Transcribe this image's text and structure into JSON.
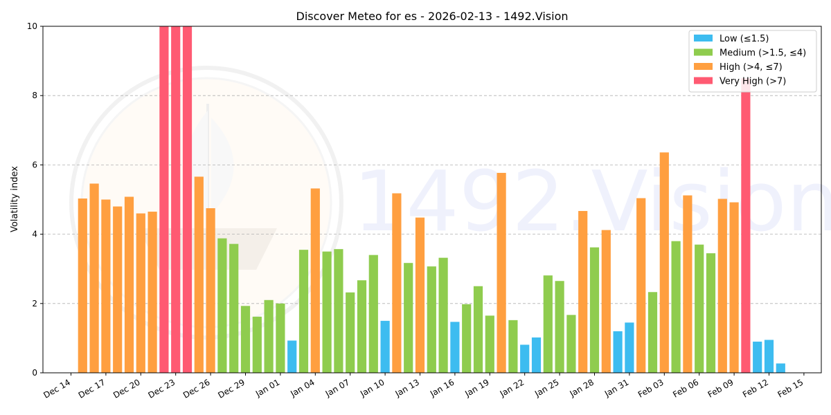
{
  "chart_data": {
    "type": "bar",
    "title": "Discover Meteo for es - 2026-02-13 - 1492.Vision",
    "ylabel": "Volatility index",
    "xlabel": "",
    "ylim": [
      0,
      10
    ],
    "yticks": [
      0,
      2,
      4,
      6,
      8,
      10
    ],
    "grid": "y-dashed",
    "legend_position": "top-right",
    "xticks": [
      "Dec 14",
      "Dec 17",
      "Dec 20",
      "Dec 23",
      "Dec 26",
      "Dec 29",
      "Jan 01",
      "Jan 04",
      "Jan 07",
      "Jan 10",
      "Jan 13",
      "Jan 16",
      "Jan 19",
      "Jan 22",
      "Jan 25",
      "Jan 28",
      "Jan 31",
      "Feb 03",
      "Feb 06",
      "Feb 09",
      "Feb 12",
      "Feb 15"
    ],
    "categories_legend": [
      {
        "name": "Low (≤1.5)",
        "color": "#3dbcf0"
      },
      {
        "name": "Medium (>1.5, ≤4)",
        "color": "#8fcc4e"
      },
      {
        "name": "High (>4, ≤7)",
        "color": "#ff9f40"
      },
      {
        "name": "Very High (>7)",
        "color": "#ff5a72"
      }
    ],
    "dates": [
      "Dec 15",
      "Dec 16",
      "Dec 17",
      "Dec 18",
      "Dec 19",
      "Dec 20",
      "Dec 21",
      "Dec 22",
      "Dec 23",
      "Dec 24",
      "Dec 25",
      "Dec 26",
      "Dec 27",
      "Dec 28",
      "Dec 29",
      "Dec 30",
      "Dec 31",
      "Jan 01",
      "Jan 02",
      "Jan 03",
      "Jan 04",
      "Jan 05",
      "Jan 06",
      "Jan 07",
      "Jan 08",
      "Jan 09",
      "Jan 10",
      "Jan 11",
      "Jan 12",
      "Jan 13",
      "Jan 14",
      "Jan 15",
      "Jan 16",
      "Jan 17",
      "Jan 18",
      "Jan 19",
      "Jan 20",
      "Jan 21",
      "Jan 22",
      "Jan 23",
      "Jan 24",
      "Jan 25",
      "Jan 26",
      "Jan 27",
      "Jan 28",
      "Jan 29",
      "Jan 30",
      "Jan 31",
      "Feb 01",
      "Feb 02",
      "Feb 03",
      "Feb 04",
      "Feb 05",
      "Feb 06",
      "Feb 07",
      "Feb 08",
      "Feb 09",
      "Feb 10",
      "Feb 11",
      "Feb 12",
      "Feb 13"
    ],
    "values": [
      5.03,
      5.46,
      5.0,
      4.8,
      5.08,
      4.6,
      4.65,
      10.0,
      10.0,
      10.0,
      5.66,
      4.75,
      3.88,
      3.72,
      1.93,
      1.62,
      2.1,
      2.0,
      0.93,
      3.55,
      5.32,
      3.5,
      3.57,
      2.32,
      2.67,
      3.4,
      1.5,
      5.18,
      3.17,
      4.48,
      3.07,
      3.32,
      1.47,
      1.98,
      2.5,
      1.65,
      5.77,
      1.52,
      0.81,
      1.02,
      2.81,
      2.65,
      1.67,
      4.67,
      3.62,
      4.12,
      1.2,
      1.45,
      5.04,
      2.33,
      6.36,
      3.8,
      5.12,
      3.7,
      3.45,
      5.02,
      4.92,
      8.5,
      0.9,
      0.95,
      0.27
    ]
  },
  "watermark": {
    "text": "1492.Vision"
  }
}
